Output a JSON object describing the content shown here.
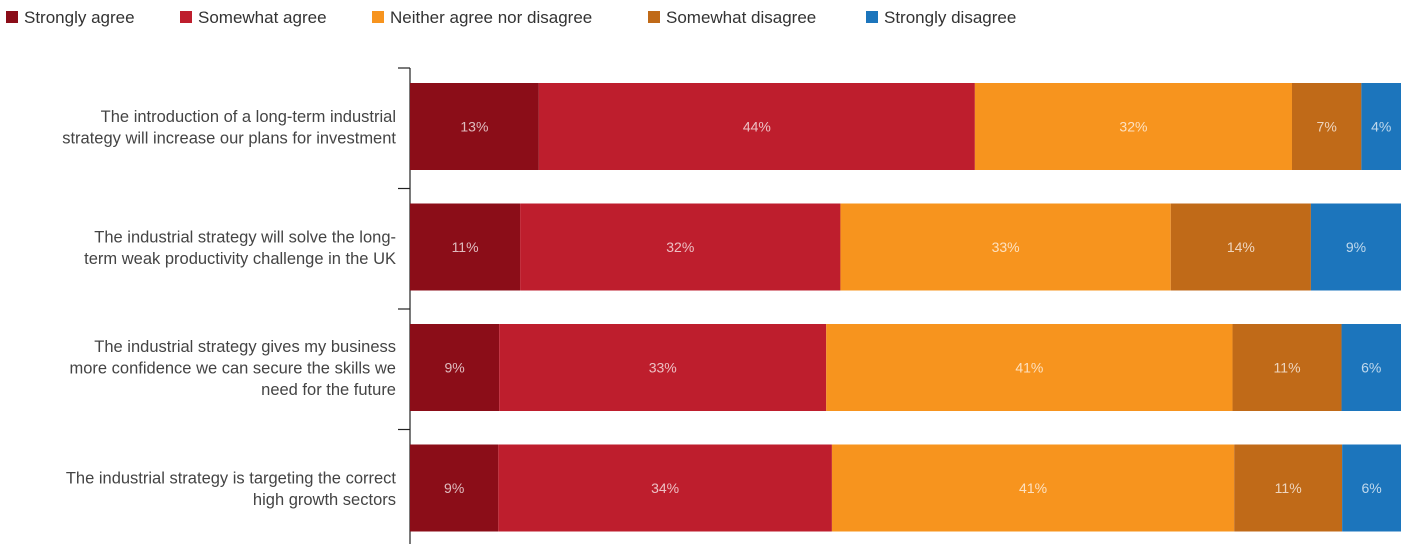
{
  "chart_data": {
    "type": "bar",
    "orientation": "horizontal",
    "stacked": true,
    "percent_stacked": true,
    "legend_position": "top-left",
    "grid": false,
    "categories": [
      [
        "The introduction of a long-term industrial",
        "strategy will increase our plans for investment"
      ],
      [
        "The industrial strategy will solve the long-",
        "term weak productivity challenge in the UK"
      ],
      [
        "The industrial strategy gives my business",
        "more confidence we can secure the skills we",
        "need for the future"
      ],
      [
        "The industrial strategy is targeting the correct",
        "high growth sectors"
      ]
    ],
    "series": [
      {
        "name": "Strongly agree",
        "color": "#8B0D18",
        "values": [
          13,
          11,
          9,
          9
        ]
      },
      {
        "name": "Somewhat agree",
        "color": "#BE1E2D",
        "values": [
          44,
          32,
          33,
          34
        ]
      },
      {
        "name": "Neither agree nor disagree",
        "color": "#F7941E",
        "values": [
          32,
          33,
          41,
          41
        ]
      },
      {
        "name": "Somewhat disagree",
        "color": "#C06A18",
        "values": [
          7,
          14,
          11,
          11
        ]
      },
      {
        "name": "Strongly disagree",
        "color": "#1C75BC",
        "values": [
          4,
          9,
          6,
          6
        ]
      }
    ],
    "value_suffix": "%"
  }
}
